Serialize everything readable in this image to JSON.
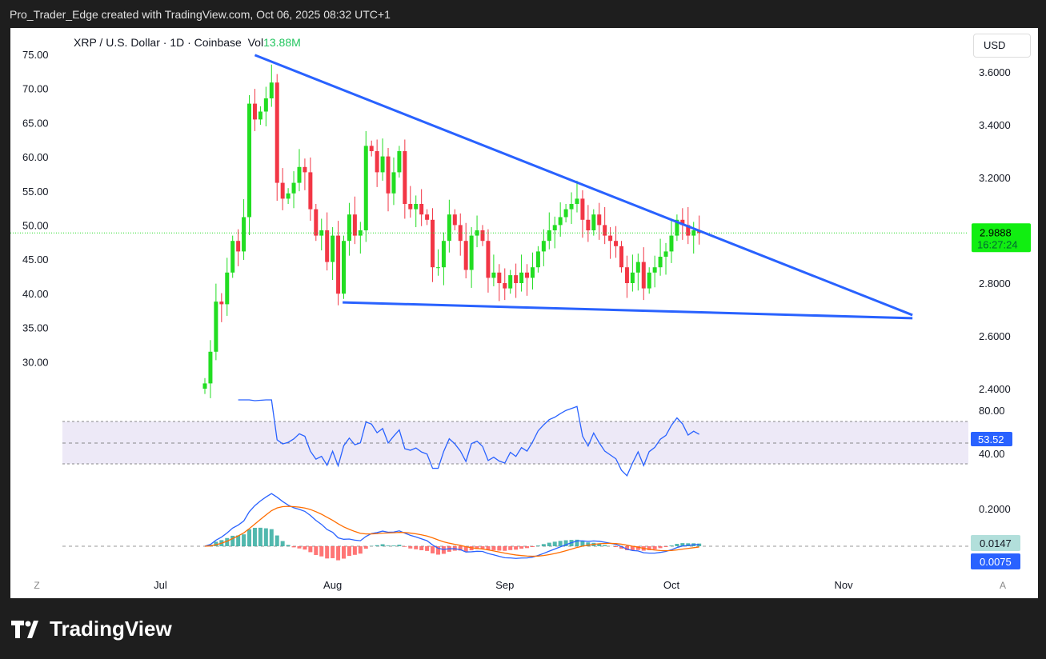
{
  "header": {
    "caption": "Pro_Trader_Edge created with TradingView.com, Oct 06, 2025 08:32 UTC+1"
  },
  "legend": {
    "symbol": "XRP / U.S. Dollar · 1D · Coinbase",
    "vol_label": "Vol",
    "vol_value": "13.88M"
  },
  "currency_button": "USD",
  "footer": {
    "brand": "TradingView"
  },
  "corner": {
    "left": "Z",
    "right": "A"
  },
  "colors": {
    "up": "#22dd22",
    "down": "#f23645",
    "trend": "#2962ff",
    "rsi": "#2962ff",
    "signal": "#ff6d00"
  },
  "chart_data": {
    "type": "candlestick",
    "start_date": "2025-07-09",
    "closes": [
      2.42,
      2.54,
      2.73,
      2.72,
      2.84,
      2.96,
      2.92,
      3.05,
      3.48,
      3.42,
      3.45,
      3.5,
      3.56,
      3.18,
      3.12,
      3.14,
      3.18,
      3.24,
      3.22,
      3.08,
      2.98,
      3.0,
      2.88,
      2.98,
      2.76,
      2.96,
      3.06,
      2.98,
      3.0,
      3.32,
      3.3,
      3.22,
      3.28,
      3.14,
      3.22,
      3.3,
      3.1,
      3.08,
      3.1,
      3.06,
      3.04,
      2.86,
      2.86,
      2.96,
      3.06,
      3.02,
      2.96,
      2.85,
      2.98,
      3.0,
      2.96,
      2.82,
      2.84,
      2.8,
      2.78,
      2.83,
      2.8,
      2.84,
      2.82,
      2.86,
      2.92,
      2.96,
      3.0,
      3.02,
      3.05,
      3.08,
      3.1,
      3.12,
      3.04,
      3.0,
      3.06,
      3.02,
      2.98,
      2.96,
      2.94,
      2.86,
      2.8,
      2.84,
      2.88,
      2.78,
      2.84,
      2.86,
      2.9,
      2.92,
      2.98,
      3.04,
      3.02,
      2.98,
      3.0,
      2.99
    ],
    "first_open": 2.4,
    "last_price": "2.9888",
    "countdown": "16:27:24",
    "right_axis_ticks": [
      "3.6000",
      "3.4000",
      "3.2000",
      "2.8000",
      "2.6000",
      "2.4000"
    ],
    "right_axis_values": [
      3.6,
      3.4,
      3.2,
      2.8,
      2.6,
      2.4
    ],
    "left_axis_ticks": [
      "75.00",
      "70.00",
      "65.00",
      "60.00",
      "55.00",
      "50.00",
      "45.00",
      "40.00",
      "35.00",
      "30.00"
    ],
    "x_ticks": [
      {
        "label": "Jul",
        "day": -8
      },
      {
        "label": "Aug",
        "day": 23
      },
      {
        "label": "Sep",
        "day": 54
      },
      {
        "label": "Oct",
        "day": 84
      },
      {
        "label": "Nov",
        "day": 115
      }
    ],
    "trendlines": [
      {
        "name": "upper",
        "from": [
          9,
          3.664
        ],
        "to": [
          127.4,
          2.679
        ]
      },
      {
        "name": "lower",
        "from": [
          24.8,
          2.727
        ],
        "to": [
          127.4,
          2.667
        ]
      }
    ],
    "rsi": {
      "ticks": [
        "80.00",
        "40.00"
      ],
      "last": "53.52",
      "upper": 70,
      "lower": 30
    },
    "macd": {
      "ticks": [
        "0.2000"
      ],
      "hist_label": "0.0147",
      "macd_label": "0.0075"
    }
  }
}
